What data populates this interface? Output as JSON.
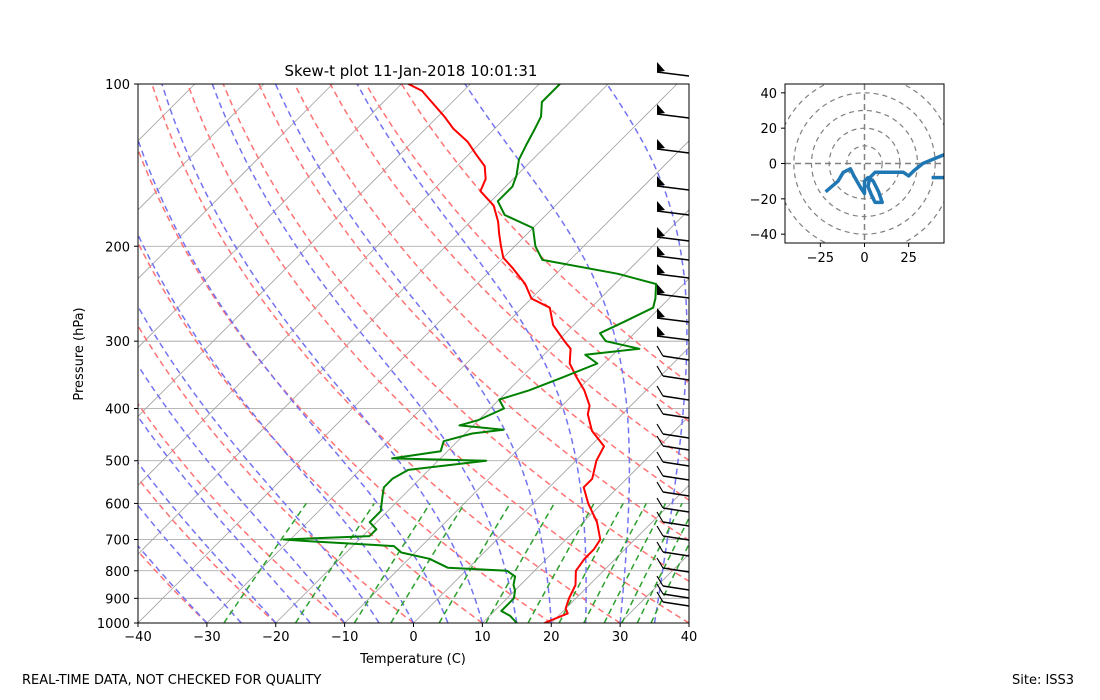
{
  "footer": {
    "left": "REAL-TIME DATA, NOT CHECKED FOR QUALITY",
    "right": "Site: ISS3"
  },
  "colors": {
    "temperature": "#ff0000",
    "dewpoint": "#008000",
    "dry_adiabat": "#ff7373",
    "moist_adiabat": "#7373f2",
    "mixing_ratio": "#2ca02c",
    "isotherm": "#a0a0a0",
    "hodograph": "#1f77b4"
  },
  "chart_data": [
    {
      "type": "line",
      "subtype": "skew-t log-p",
      "title": "Skew-t plot 11-Jan-2018 10:01:31",
      "xlabel": "Temperature (C)",
      "ylabel": "Pressure (hPa)",
      "xlim": [
        -40,
        40
      ],
      "ylim": [
        1000,
        100
      ],
      "y_scale": "log (reversed)",
      "x_ticks": [
        -40,
        -30,
        -20,
        -10,
        0,
        10,
        20,
        30,
        40
      ],
      "y_ticks": [
        1000,
        900,
        800,
        700,
        600,
        500,
        400,
        300,
        200,
        100
      ],
      "grid": true,
      "series": [
        {
          "key": "temperature",
          "points": [
            [
              19,
              1000
            ],
            [
              21,
              960
            ],
            [
              20,
              940
            ],
            [
              19,
              900
            ],
            [
              18,
              850
            ],
            [
              16,
              800
            ],
            [
              15.5,
              760
            ],
            [
              15.5,
              730
            ],
            [
              15,
              700
            ],
            [
              12,
              650
            ],
            [
              8,
              600
            ],
            [
              5,
              560
            ],
            [
              5,
              540
            ],
            [
              3,
              500
            ],
            [
              2,
              470
            ],
            [
              -2,
              440
            ],
            [
              -5,
              410
            ],
            [
              -6,
              395
            ],
            [
              -9,
              370
            ],
            [
              -12,
              350
            ],
            [
              -15,
              330
            ],
            [
              -17,
              310
            ],
            [
              -19,
              300
            ],
            [
              -23,
              280
            ],
            [
              -26,
              260
            ],
            [
              -30,
              250
            ],
            [
              -33,
              235
            ],
            [
              -37,
              220
            ],
            [
              -40,
              210
            ],
            [
              -42,
              200
            ],
            [
              -44,
              190
            ],
            [
              -46,
              180
            ],
            [
              -49,
              168
            ],
            [
              -53,
              158
            ],
            [
              -54,
              150
            ],
            [
              -56,
              142
            ],
            [
              -59,
              135
            ],
            [
              -62,
              128
            ],
            [
              -66,
              121
            ],
            [
              -69,
              115
            ],
            [
              -73,
              108
            ],
            [
              -76,
              103
            ],
            [
              -79,
              100
            ]
          ]
        },
        {
          "key": "dewpoint",
          "points": [
            [
              15,
              1000
            ],
            [
              13,
              970
            ],
            [
              11,
              950
            ],
            [
              11,
              900
            ],
            [
              10,
              870
            ],
            [
              9,
              850
            ],
            [
              8,
              820
            ],
            [
              6,
              800
            ],
            [
              -3,
              790
            ],
            [
              -7,
              760
            ],
            [
              -12,
              740
            ],
            [
              -14,
              720
            ],
            [
              -27,
              705
            ],
            [
              -31,
              700
            ],
            [
              -19,
              690
            ],
            [
              -19,
              670
            ],
            [
              -21,
              650
            ],
            [
              -21,
              620
            ],
            [
              -22,
              600
            ],
            [
              -23,
              580
            ],
            [
              -24,
              560
            ],
            [
              -24,
              540
            ],
            [
              -23,
              520
            ],
            [
              -13,
              500
            ],
            [
              -27,
              495
            ],
            [
              -21,
              480
            ],
            [
              -22,
              460
            ],
            [
              -19,
              445
            ],
            [
              -15,
              438
            ],
            [
              -22,
              430
            ],
            [
              -20,
              420
            ],
            [
              -18,
              400
            ],
            [
              -20,
              385
            ],
            [
              -17,
              370
            ],
            [
              -14,
              350
            ],
            [
              -11,
              330
            ],
            [
              -14,
              318
            ],
            [
              -7,
              310
            ],
            [
              -13,
              300
            ],
            [
              -15,
              290
            ],
            [
              -13,
              275
            ],
            [
              -11,
              260
            ],
            [
              -12,
              250
            ],
            [
              -14,
              235
            ],
            [
              -21,
              225
            ],
            [
              -34,
              212
            ],
            [
              -37,
              200
            ],
            [
              -40,
              185
            ],
            [
              -46,
              175
            ],
            [
              -49,
              165
            ],
            [
              -49,
              155
            ],
            [
              -50,
              148
            ],
            [
              -52,
              138
            ],
            [
              -53,
              130
            ],
            [
              -54,
              122
            ],
            [
              -55,
              115
            ],
            [
              -57,
              108
            ],
            [
              -57,
              100
            ]
          ]
        }
      ]
    },
    {
      "type": "line",
      "subtype": "hodograph",
      "xlim": [
        -45,
        45
      ],
      "ylim": [
        -45,
        45
      ],
      "x_ticks": [
        -25,
        0,
        25
      ],
      "y_ticks": [
        40,
        20,
        0,
        -20,
        -40
      ],
      "grid": "dashed range rings",
      "points": [
        [
          -22,
          -16
        ],
        [
          -15,
          -10
        ],
        [
          -12,
          -5
        ],
        [
          -8,
          -3
        ],
        [
          -6,
          -7
        ],
        [
          -2,
          -14
        ],
        [
          0,
          -17
        ],
        [
          0,
          -10
        ],
        [
          2,
          -8
        ],
        [
          5,
          -10
        ],
        [
          8,
          -16
        ],
        [
          10,
          -22
        ],
        [
          6,
          -22
        ],
        [
          4,
          -18
        ],
        [
          2,
          -13
        ],
        [
          3,
          -8
        ],
        [
          6,
          -5
        ],
        [
          10,
          -5
        ],
        [
          18,
          -5
        ],
        [
          22,
          -5
        ],
        [
          25,
          -7
        ],
        [
          28,
          -4
        ],
        [
          33,
          0
        ],
        [
          45,
          5
        ]
      ],
      "extra_segment": [
        [
          38,
          -8
        ],
        [
          47,
          -8
        ]
      ]
    }
  ]
}
